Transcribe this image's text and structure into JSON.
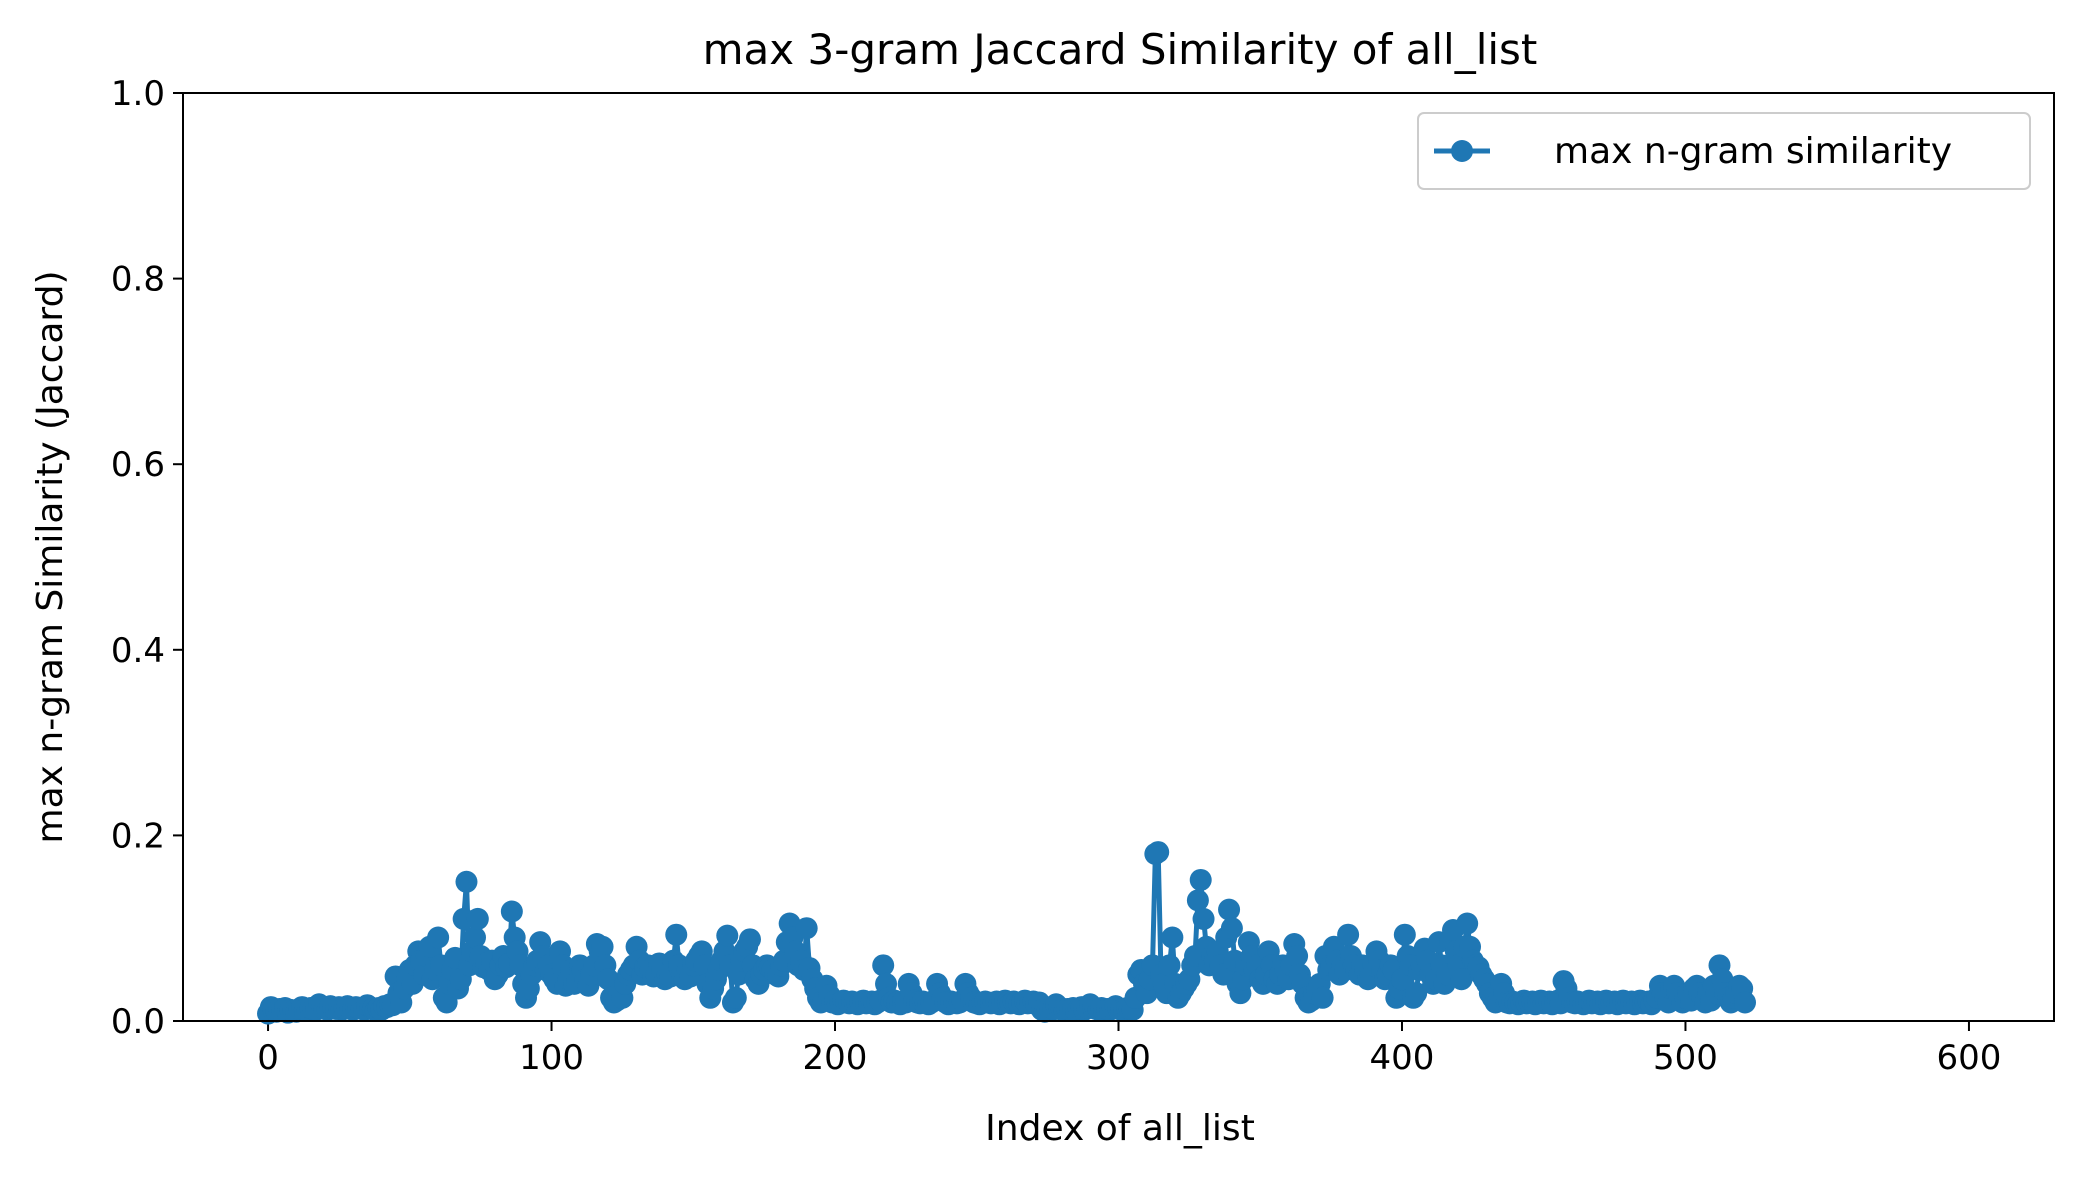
{
  "chart_data": {
    "type": "line",
    "title": "max 3-gram Jaccard Similarity of all_list",
    "xlabel": "Index of all_list",
    "ylabel": "max n-gram Similarity (Jaccard)",
    "xlim": [
      -30,
      630
    ],
    "ylim": [
      0.0,
      1.0
    ],
    "x_ticks": [
      0,
      100,
      200,
      300,
      400,
      500,
      600
    ],
    "x_tick_labels": [
      "0",
      "100",
      "200",
      "300",
      "400",
      "500",
      "600"
    ],
    "y_ticks": [
      0.0,
      0.2,
      0.4,
      0.6,
      0.8,
      1.0
    ],
    "y_tick_labels": [
      "0.0",
      "0.2",
      "0.4",
      "0.6",
      "0.8",
      "1.0"
    ],
    "grid": false,
    "legend_position": "top-right",
    "color": "#1f77b4",
    "marker": "circle",
    "series": [
      {
        "name": "max n-gram similarity",
        "x_start": 0,
        "x_step": 1,
        "values": [
          0.008,
          0.015,
          0.012,
          0.01,
          0.013,
          0.011,
          0.014,
          0.009,
          0.012,
          0.011,
          0.01,
          0.013,
          0.015,
          0.012,
          0.011,
          0.014,
          0.013,
          0.012,
          0.018,
          0.015,
          0.013,
          0.012,
          0.016,
          0.014,
          0.013,
          0.015,
          0.012,
          0.014,
          0.016,
          0.013,
          0.012,
          0.015,
          0.014,
          0.013,
          0.012,
          0.017,
          0.015,
          0.013,
          0.011,
          0.014,
          0.012,
          0.016,
          0.015,
          0.018,
          0.017,
          0.048,
          0.03,
          0.02,
          0.035,
          0.045,
          0.055,
          0.04,
          0.06,
          0.075,
          0.065,
          0.05,
          0.07,
          0.08,
          0.045,
          0.055,
          0.09,
          0.06,
          0.025,
          0.02,
          0.04,
          0.055,
          0.068,
          0.035,
          0.045,
          0.11,
          0.15,
          0.06,
          0.075,
          0.09,
          0.11,
          0.07,
          0.058,
          0.062,
          0.055,
          0.065,
          0.045,
          0.05,
          0.06,
          0.07,
          0.058,
          0.062,
          0.118,
          0.09,
          0.075,
          0.06,
          0.04,
          0.025,
          0.035,
          0.05,
          0.06,
          0.065,
          0.085,
          0.07,
          0.055,
          0.06,
          0.05,
          0.045,
          0.04,
          0.075,
          0.06,
          0.038,
          0.045,
          0.055,
          0.04,
          0.042,
          0.06,
          0.055,
          0.045,
          0.038,
          0.05,
          0.06,
          0.083,
          0.075,
          0.08,
          0.06,
          0.045,
          0.025,
          0.02,
          0.022,
          0.03,
          0.025,
          0.04,
          0.05,
          0.055,
          0.06,
          0.08,
          0.065,
          0.05,
          0.058,
          0.06,
          0.055,
          0.048,
          0.05,
          0.062,
          0.055,
          0.045,
          0.05,
          0.048,
          0.065,
          0.093,
          0.06,
          0.05,
          0.045,
          0.055,
          0.048,
          0.06,
          0.065,
          0.07,
          0.075,
          0.06,
          0.04,
          0.025,
          0.035,
          0.045,
          0.055,
          0.065,
          0.075,
          0.092,
          0.06,
          0.02,
          0.025,
          0.05,
          0.065,
          0.075,
          0.08,
          0.088,
          0.06,
          0.045,
          0.04,
          0.05,
          0.055,
          0.06,
          0.058,
          0.055,
          0.05,
          0.048,
          0.06,
          0.065,
          0.085,
          0.105,
          0.09,
          0.075,
          0.06,
          0.065,
          0.055,
          0.1,
          0.057,
          0.045,
          0.035,
          0.025,
          0.02,
          0.022,
          0.038,
          0.028,
          0.02,
          0.022,
          0.018,
          0.02,
          0.022,
          0.02,
          0.019,
          0.021,
          0.02,
          0.018,
          0.02,
          0.022,
          0.019,
          0.02,
          0.021,
          0.018,
          0.02,
          0.022,
          0.06,
          0.04,
          0.025,
          0.02,
          0.022,
          0.02,
          0.018,
          0.021,
          0.02,
          0.04,
          0.03,
          0.022,
          0.02,
          0.019,
          0.021,
          0.02,
          0.018,
          0.02,
          0.022,
          0.04,
          0.03,
          0.025,
          0.02,
          0.018,
          0.021,
          0.02,
          0.019,
          0.02,
          0.022,
          0.04,
          0.03,
          0.025,
          0.02,
          0.019,
          0.018,
          0.02,
          0.021,
          0.02,
          0.019,
          0.02,
          0.021,
          0.018,
          0.02,
          0.022,
          0.02,
          0.019,
          0.021,
          0.02,
          0.018,
          0.02,
          0.022,
          0.019,
          0.02,
          0.021,
          0.018,
          0.02,
          0.012,
          0.01,
          0.012,
          0.011,
          0.013,
          0.018,
          0.015,
          0.012,
          0.011,
          0.013,
          0.012,
          0.014,
          0.011,
          0.013,
          0.015,
          0.012,
          0.014,
          0.018,
          0.015,
          0.013,
          0.012,
          0.014,
          0.011,
          0.013,
          0.012,
          0.014,
          0.016,
          0.013,
          0.012,
          0.011,
          0.014,
          0.013,
          0.012,
          0.025,
          0.05,
          0.055,
          0.04,
          0.03,
          0.045,
          0.06,
          0.18,
          0.182,
          0.05,
          0.04,
          0.03,
          0.06,
          0.09,
          0.04,
          0.025,
          0.03,
          0.035,
          0.04,
          0.045,
          0.06,
          0.07,
          0.13,
          0.152,
          0.11,
          0.08,
          0.06,
          0.07,
          0.065,
          0.075,
          0.06,
          0.05,
          0.09,
          0.12,
          0.1,
          0.065,
          0.04,
          0.03,
          0.045,
          0.06,
          0.085,
          0.07,
          0.055,
          0.06,
          0.045,
          0.04,
          0.05,
          0.075,
          0.06,
          0.045,
          0.04,
          0.05,
          0.06,
          0.055,
          0.045,
          0.06,
          0.083,
          0.07,
          0.05,
          0.04,
          0.025,
          0.02,
          0.022,
          0.03,
          0.035,
          0.04,
          0.025,
          0.07,
          0.055,
          0.06,
          0.08,
          0.065,
          0.05,
          0.06,
          0.055,
          0.093,
          0.07,
          0.06,
          0.055,
          0.05,
          0.06,
          0.055,
          0.045,
          0.05,
          0.06,
          0.075,
          0.065,
          0.055,
          0.045,
          0.05,
          0.06,
          0.055,
          0.025,
          0.035,
          0.045,
          0.093,
          0.07,
          0.06,
          0.025,
          0.03,
          0.055,
          0.06,
          0.078,
          0.065,
          0.05,
          0.04,
          0.045,
          0.085,
          0.06,
          0.04,
          0.05,
          0.085,
          0.098,
          0.075,
          0.06,
          0.045,
          0.08,
          0.105,
          0.08,
          0.065,
          0.06,
          0.058,
          0.05,
          0.045,
          0.04,
          0.03,
          0.025,
          0.02,
          0.022,
          0.04,
          0.03,
          0.02,
          0.019,
          0.021,
          0.02,
          0.018,
          0.02,
          0.022,
          0.019,
          0.02,
          0.021,
          0.018,
          0.02,
          0.022,
          0.019,
          0.02,
          0.021,
          0.018,
          0.02,
          0.022,
          0.019,
          0.043,
          0.035,
          0.025,
          0.02,
          0.019,
          0.021,
          0.02,
          0.018,
          0.02,
          0.022,
          0.019,
          0.02,
          0.021,
          0.018,
          0.02,
          0.022,
          0.019,
          0.02,
          0.021,
          0.018,
          0.02,
          0.022,
          0.019,
          0.02,
          0.021,
          0.018,
          0.02,
          0.022,
          0.019,
          0.02,
          0.021,
          0.018,
          0.022,
          0.025,
          0.038,
          0.03,
          0.025,
          0.02,
          0.035,
          0.038,
          0.03,
          0.025,
          0.02,
          0.025,
          0.03,
          0.022,
          0.035,
          0.038,
          0.03,
          0.025,
          0.02,
          0.03,
          0.022,
          0.038,
          0.03,
          0.06,
          0.045,
          0.03,
          0.025,
          0.02,
          0.025,
          0.03,
          0.038,
          0.035,
          0.02
        ]
      }
    ]
  }
}
